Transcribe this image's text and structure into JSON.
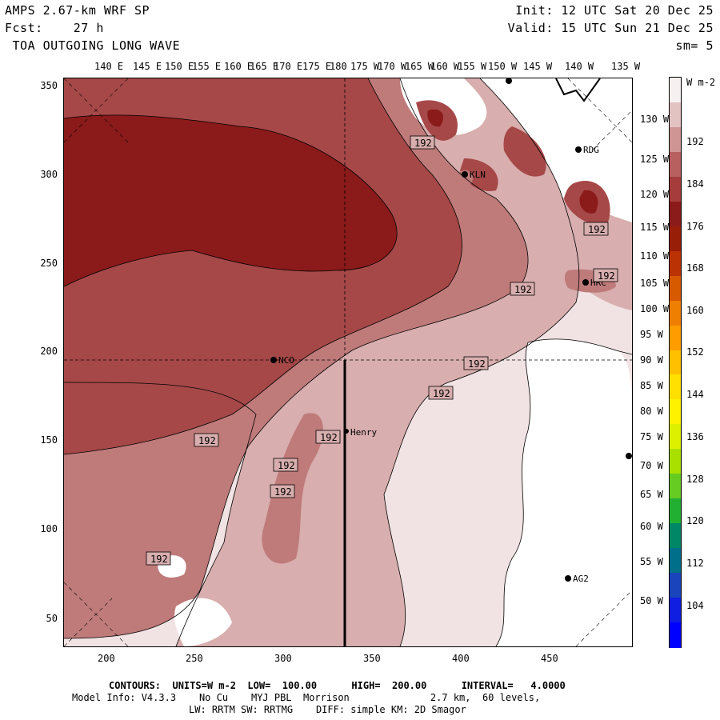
{
  "header": {
    "line1_left": "AMPS 2.67-km WRF SP",
    "line2_left": "Fcst:    27 h",
    "line3_left": " TOA OUTGOING LONG WAVE",
    "line1_right": "Init: 12 UTC Sat 20 Dec 25",
    "line2_right": "Valid: 15 UTC Sun 21 Dec 25",
    "line3_right": "sm= 5"
  },
  "lon_labels": [
    "140 E",
    "145 E",
    "150 E",
    "155 E",
    "160 E",
    "165 E",
    "170 E",
    "175 E",
    "180",
    "175 W",
    "170 W",
    "165 W",
    "160 W",
    "155 W",
    "150 W",
    "145 W",
    "140 W",
    "135 W"
  ],
  "lat_labels": [
    "130 W",
    "125 W",
    "120 W",
    "115 W",
    "110 W",
    "105 W",
    "100 W",
    "95 W",
    "90 W",
    "85 W",
    "80 W",
    "75 W",
    "70 W",
    "65 W",
    "60 W",
    "55 W",
    "50 W"
  ],
  "y_ticks": [
    "350",
    "300",
    "250",
    "200",
    "150",
    "100",
    "50"
  ],
  "x_ticks": [
    "200",
    "250",
    "300",
    "350",
    "400",
    "450"
  ],
  "stations": [
    {
      "name": "NCO"
    },
    {
      "name": "KLN"
    },
    {
      "name": "RDG"
    },
    {
      "name": "HRC"
    },
    {
      "name": "Henry"
    },
    {
      "name": "AG2"
    }
  ],
  "contour_label": "192",
  "colorbar": {
    "unit": "W m-2",
    "labels": [
      "192",
      "184",
      "176",
      "168",
      "160",
      "152",
      "144",
      "136",
      "128",
      "120",
      "112",
      "104"
    ],
    "colors": [
      "#f7f0f0",
      "#e3c2c2",
      "#cf9595",
      "#b86060",
      "#a63c3c",
      "#8b1a1a",
      "#991e08",
      "#bb3305",
      "#d85a00",
      "#ef7f00",
      "#ff9d00",
      "#ffc000",
      "#ffe000",
      "#fff200",
      "#ddf000",
      "#aae000",
      "#66cc22",
      "#22b033",
      "#008866",
      "#006f8a",
      "#1a44bb",
      "#0f1ee0",
      "#0000ff"
    ],
    "fill_colors": {
      "c1": "#8b1a1a",
      "c2": "#a64848",
      "c3": "#bf7a7a",
      "c4": "#d8aeae",
      "c5": "#f1e3e3",
      "c6": "#ffffff"
    }
  },
  "footer": {
    "line1": "CONTOURS:  UNITS=W m-2  LOW=  100.00      HIGH=  200.00      INTERVAL=   4.0000",
    "line2": "Model Info: V4.3.3    No Cu    MYJ PBL  Morrison              2.7 km,  60 levels,",
    "line3": "LW: RRTM SW: RRTMG    DIFF: simple KM: 2D Smagor"
  }
}
